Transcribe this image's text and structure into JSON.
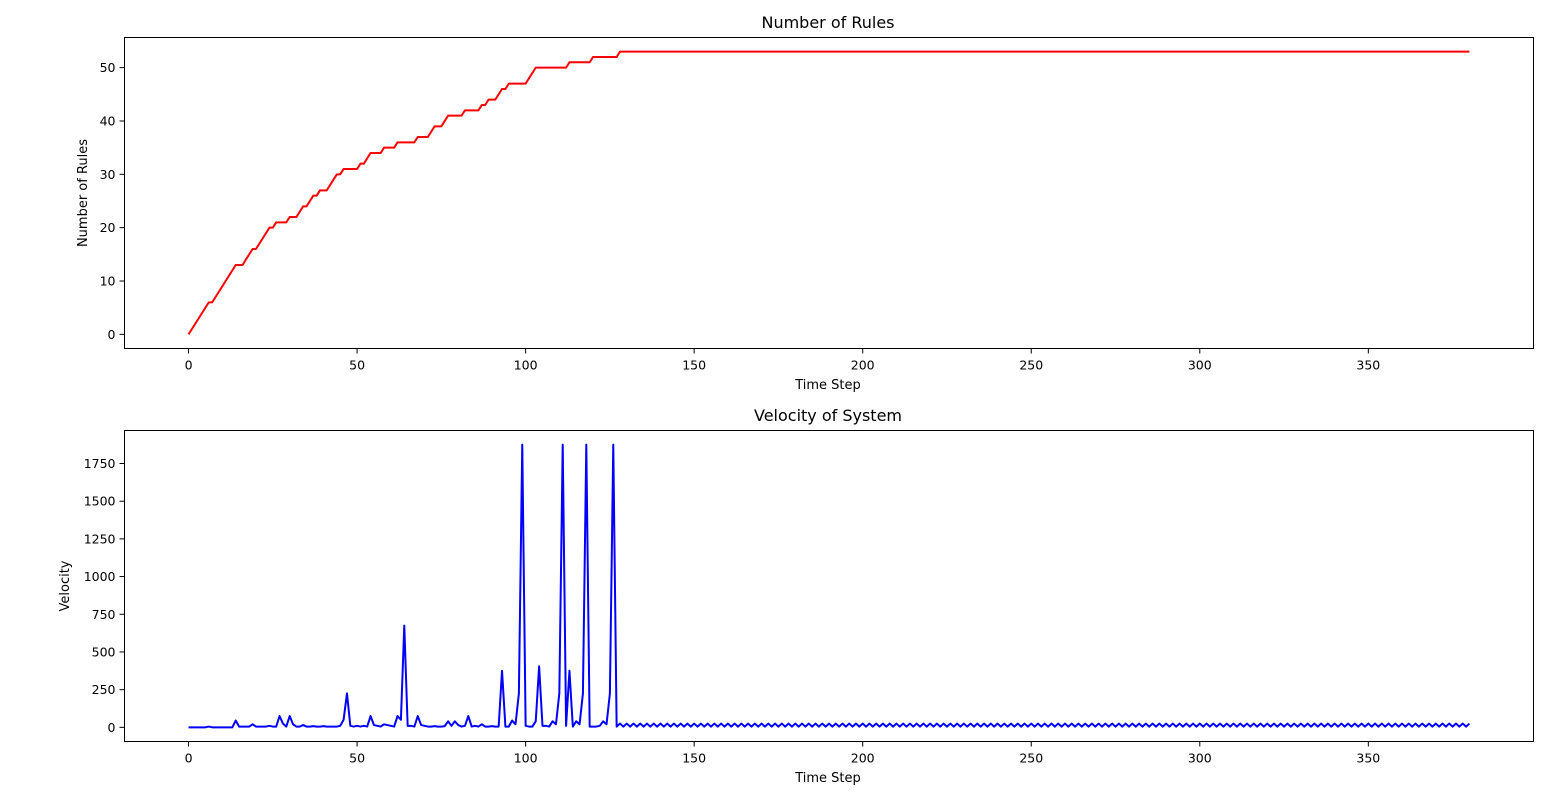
{
  "chart_data": [
    {
      "type": "line",
      "title": "Number of Rules",
      "xlabel": "Time Step",
      "ylabel": "Number of Rules",
      "xlim": [
        -19,
        399
      ],
      "ylim": [
        -2.65,
        55.65
      ],
      "xticks": [
        0,
        50,
        100,
        150,
        200,
        250,
        300,
        350
      ],
      "yticks": [
        0,
        10,
        20,
        30,
        40,
        50
      ],
      "grid": false,
      "series": [
        {
          "color": "#ff0000",
          "points": [
            [
              0,
              0
            ],
            [
              6,
              6
            ],
            [
              7,
              6
            ],
            [
              14,
              13
            ],
            [
              16,
              13
            ],
            [
              19,
              16
            ],
            [
              20,
              16
            ],
            [
              24,
              20
            ],
            [
              25,
              20
            ],
            [
              26,
              21
            ],
            [
              29,
              21
            ],
            [
              30,
              22
            ],
            [
              32,
              22
            ],
            [
              34,
              24
            ],
            [
              35,
              24
            ],
            [
              37,
              26
            ],
            [
              38,
              26
            ],
            [
              39,
              27
            ],
            [
              41,
              27
            ],
            [
              44,
              30
            ],
            [
              45,
              30
            ],
            [
              46,
              31
            ],
            [
              50,
              31
            ],
            [
              51,
              32
            ],
            [
              52,
              32
            ],
            [
              54,
              34
            ],
            [
              57,
              34
            ],
            [
              58,
              35
            ],
            [
              61,
              35
            ],
            [
              62,
              36
            ],
            [
              67,
              36
            ],
            [
              68,
              37
            ],
            [
              71,
              37
            ],
            [
              73,
              39
            ],
            [
              75,
              39
            ],
            [
              77,
              41
            ],
            [
              81,
              41
            ],
            [
              82,
              42
            ],
            [
              86,
              42
            ],
            [
              87,
              43
            ],
            [
              88,
              43
            ],
            [
              89,
              44
            ],
            [
              91,
              44
            ],
            [
              93,
              46
            ],
            [
              94,
              46
            ],
            [
              95,
              47
            ],
            [
              100,
              47
            ],
            [
              103,
              50
            ],
            [
              112,
              50
            ],
            [
              113,
              51
            ],
            [
              119,
              51
            ],
            [
              120,
              52
            ],
            [
              127,
              52
            ],
            [
              128,
              53
            ],
            [
              380,
              53
            ]
          ]
        }
      ]
    },
    {
      "type": "line",
      "title": "Velocity of System",
      "xlabel": "Time Step",
      "ylabel": "Velocity",
      "xlim": [
        -19,
        399
      ],
      "ylim": [
        -94,
        1969
      ],
      "xticks": [
        0,
        50,
        100,
        150,
        200,
        250,
        300,
        350
      ],
      "yticks": [
        0,
        250,
        500,
        750,
        1000,
        1250,
        1500,
        1750
      ],
      "grid": false,
      "series": [
        {
          "color": "#0000ff",
          "oscillation_after": {
            "start": 127,
            "end": 380,
            "period": 2,
            "low": 5,
            "high": 25
          },
          "points": [
            [
              0,
              0
            ],
            [
              5,
              0
            ],
            [
              6,
              5
            ],
            [
              7,
              0
            ],
            [
              13,
              0
            ],
            [
              14,
              45
            ],
            [
              15,
              5
            ],
            [
              18,
              5
            ],
            [
              19,
              20
            ],
            [
              20,
              5
            ],
            [
              23,
              5
            ],
            [
              24,
              10
            ],
            [
              25,
              5
            ],
            [
              26,
              5
            ],
            [
              27,
              75
            ],
            [
              28,
              25
            ],
            [
              29,
              5
            ],
            [
              30,
              75
            ],
            [
              31,
              20
            ],
            [
              32,
              5
            ],
            [
              33,
              5
            ],
            [
              34,
              15
            ],
            [
              35,
              5
            ],
            [
              36,
              5
            ],
            [
              37,
              8
            ],
            [
              38,
              5
            ],
            [
              39,
              5
            ],
            [
              40,
              8
            ],
            [
              41,
              5
            ],
            [
              44,
              5
            ],
            [
              45,
              10
            ],
            [
              46,
              50
            ],
            [
              47,
              225
            ],
            [
              48,
              10
            ],
            [
              49,
              5
            ],
            [
              50,
              10
            ],
            [
              51,
              5
            ],
            [
              52,
              10
            ],
            [
              53,
              5
            ],
            [
              54,
              75
            ],
            [
              55,
              15
            ],
            [
              56,
              10
            ],
            [
              57,
              5
            ],
            [
              58,
              20
            ],
            [
              59,
              15
            ],
            [
              60,
              10
            ],
            [
              61,
              5
            ],
            [
              62,
              75
            ],
            [
              63,
              50
            ],
            [
              64,
              675
            ],
            [
              65,
              10
            ],
            [
              66,
              10
            ],
            [
              67,
              5
            ],
            [
              68,
              75
            ],
            [
              69,
              15
            ],
            [
              70,
              10
            ],
            [
              71,
              5
            ],
            [
              72,
              5
            ],
            [
              73,
              8
            ],
            [
              74,
              5
            ],
            [
              75,
              5
            ],
            [
              76,
              8
            ],
            [
              77,
              40
            ],
            [
              78,
              10
            ],
            [
              79,
              40
            ],
            [
              80,
              15
            ],
            [
              81,
              5
            ],
            [
              82,
              10
            ],
            [
              83,
              75
            ],
            [
              84,
              5
            ],
            [
              85,
              10
            ],
            [
              86,
              5
            ],
            [
              87,
              20
            ],
            [
              88,
              5
            ],
            [
              89,
              5
            ],
            [
              90,
              8
            ],
            [
              91,
              5
            ],
            [
              92,
              5
            ],
            [
              93,
              375
            ],
            [
              94,
              5
            ],
            [
              95,
              5
            ],
            [
              96,
              45
            ],
            [
              97,
              20
            ],
            [
              98,
              225
            ],
            [
              99,
              1875
            ],
            [
              100,
              10
            ],
            [
              101,
              5
            ],
            [
              102,
              5
            ],
            [
              103,
              40
            ],
            [
              104,
              405
            ],
            [
              105,
              10
            ],
            [
              106,
              10
            ],
            [
              107,
              5
            ],
            [
              108,
              40
            ],
            [
              109,
              20
            ],
            [
              110,
              225
            ],
            [
              111,
              1875
            ],
            [
              112,
              10
            ],
            [
              113,
              375
            ],
            [
              114,
              5
            ],
            [
              115,
              40
            ],
            [
              116,
              20
            ],
            [
              117,
              225
            ],
            [
              118,
              1875
            ],
            [
              119,
              5
            ],
            [
              120,
              5
            ],
            [
              121,
              5
            ],
            [
              122,
              10
            ],
            [
              123,
              40
            ],
            [
              124,
              20
            ],
            [
              125,
              225
            ],
            [
              126,
              1875
            ],
            [
              127,
              5
            ]
          ]
        }
      ]
    }
  ]
}
